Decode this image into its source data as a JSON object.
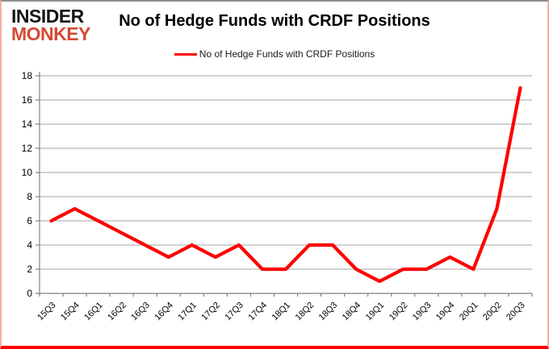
{
  "logo": {
    "line1": "INSIDER",
    "line2": "MONKEY",
    "accent_color": "#d54a32"
  },
  "header": {
    "title": "No of Hedge Funds with CRDF Positions"
  },
  "legend": {
    "label": "No of Hedge Funds with CRDF Positions",
    "line_color": "#fe0000"
  },
  "chart_data": {
    "type": "line",
    "title": "No of Hedge Funds with CRDF Positions",
    "categories": [
      "15Q3",
      "15Q4",
      "16Q1",
      "16Q2",
      "16Q3",
      "16Q4",
      "17Q1",
      "17Q2",
      "17Q3",
      "17Q4",
      "18Q1",
      "18Q2",
      "18Q3",
      "18Q4",
      "19Q1",
      "19Q2",
      "19Q3",
      "19Q4",
      "20Q1",
      "20Q2",
      "20Q3"
    ],
    "series": [
      {
        "name": "No of Hedge Funds with CRDF Positions",
        "values": [
          6,
          7,
          6,
          5,
          4,
          3,
          4,
          3,
          4,
          2,
          2,
          4,
          4,
          2,
          1,
          2,
          2,
          3,
          2,
          7,
          17
        ]
      }
    ],
    "xlabel": "",
    "ylabel": "",
    "ylim": [
      0,
      18
    ],
    "ytick_step": 2,
    "grid": true,
    "legend_position": "top",
    "line_color": "#fe0000",
    "grid_color": "#a6a6a6",
    "axis_color": "#808080",
    "tick_label_color": "#000000"
  }
}
